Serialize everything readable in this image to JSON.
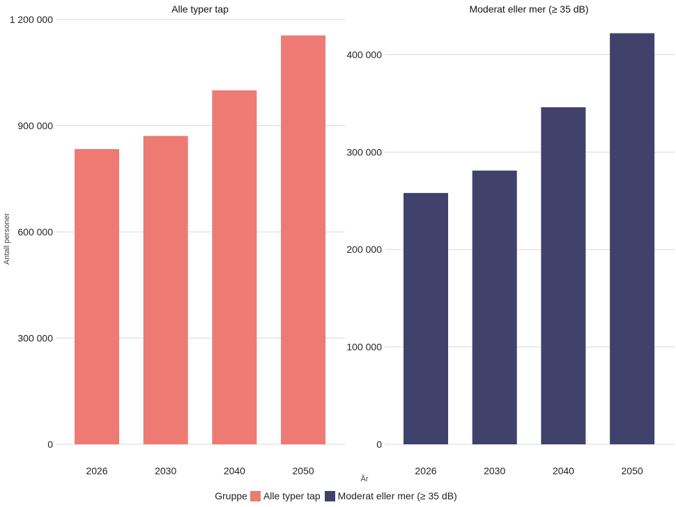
{
  "chart_data": [
    {
      "type": "bar",
      "title": "Alle typer tap",
      "categories": [
        "2026",
        "2030",
        "2040",
        "2050"
      ],
      "series": [
        {
          "name": "Alle typer tap",
          "values": [
            834000,
            871000,
            1000000,
            1155000
          ]
        }
      ],
      "ylim": [
        0,
        1200000
      ],
      "yticks": [
        0,
        300000,
        600000,
        900000,
        1200000
      ],
      "ytick_labels": [
        "0",
        "300 000",
        "600 000",
        "900 000",
        "1 200 000"
      ],
      "color": "#ED7B73",
      "grid": true
    },
    {
      "type": "bar",
      "title": "Moderat eller mer  (≥ 35 dB)",
      "categories": [
        "2026",
        "2030",
        "2040",
        "2050"
      ],
      "series": [
        {
          "name": "Moderat eller mer  (≥ 35 dB)",
          "values": [
            258000,
            281000,
            346000,
            422000
          ]
        }
      ],
      "ylim": [
        0,
        420000
      ],
      "yticks": [
        0,
        100000,
        200000,
        300000,
        400000
      ],
      "ytick_labels": [
        "0",
        "100 000",
        "200 000",
        "300 000",
        "400 000"
      ],
      "color": "#40426C",
      "grid": true
    }
  ],
  "ylabel": "Antall personer",
  "xlabel": "År",
  "legend": {
    "title": "Gruppe",
    "items": [
      {
        "label": "Alle typer tap",
        "color": "#ED7B73"
      },
      {
        "label": "Moderat eller mer  (≥ 35 dB)",
        "color": "#40426C"
      }
    ]
  }
}
